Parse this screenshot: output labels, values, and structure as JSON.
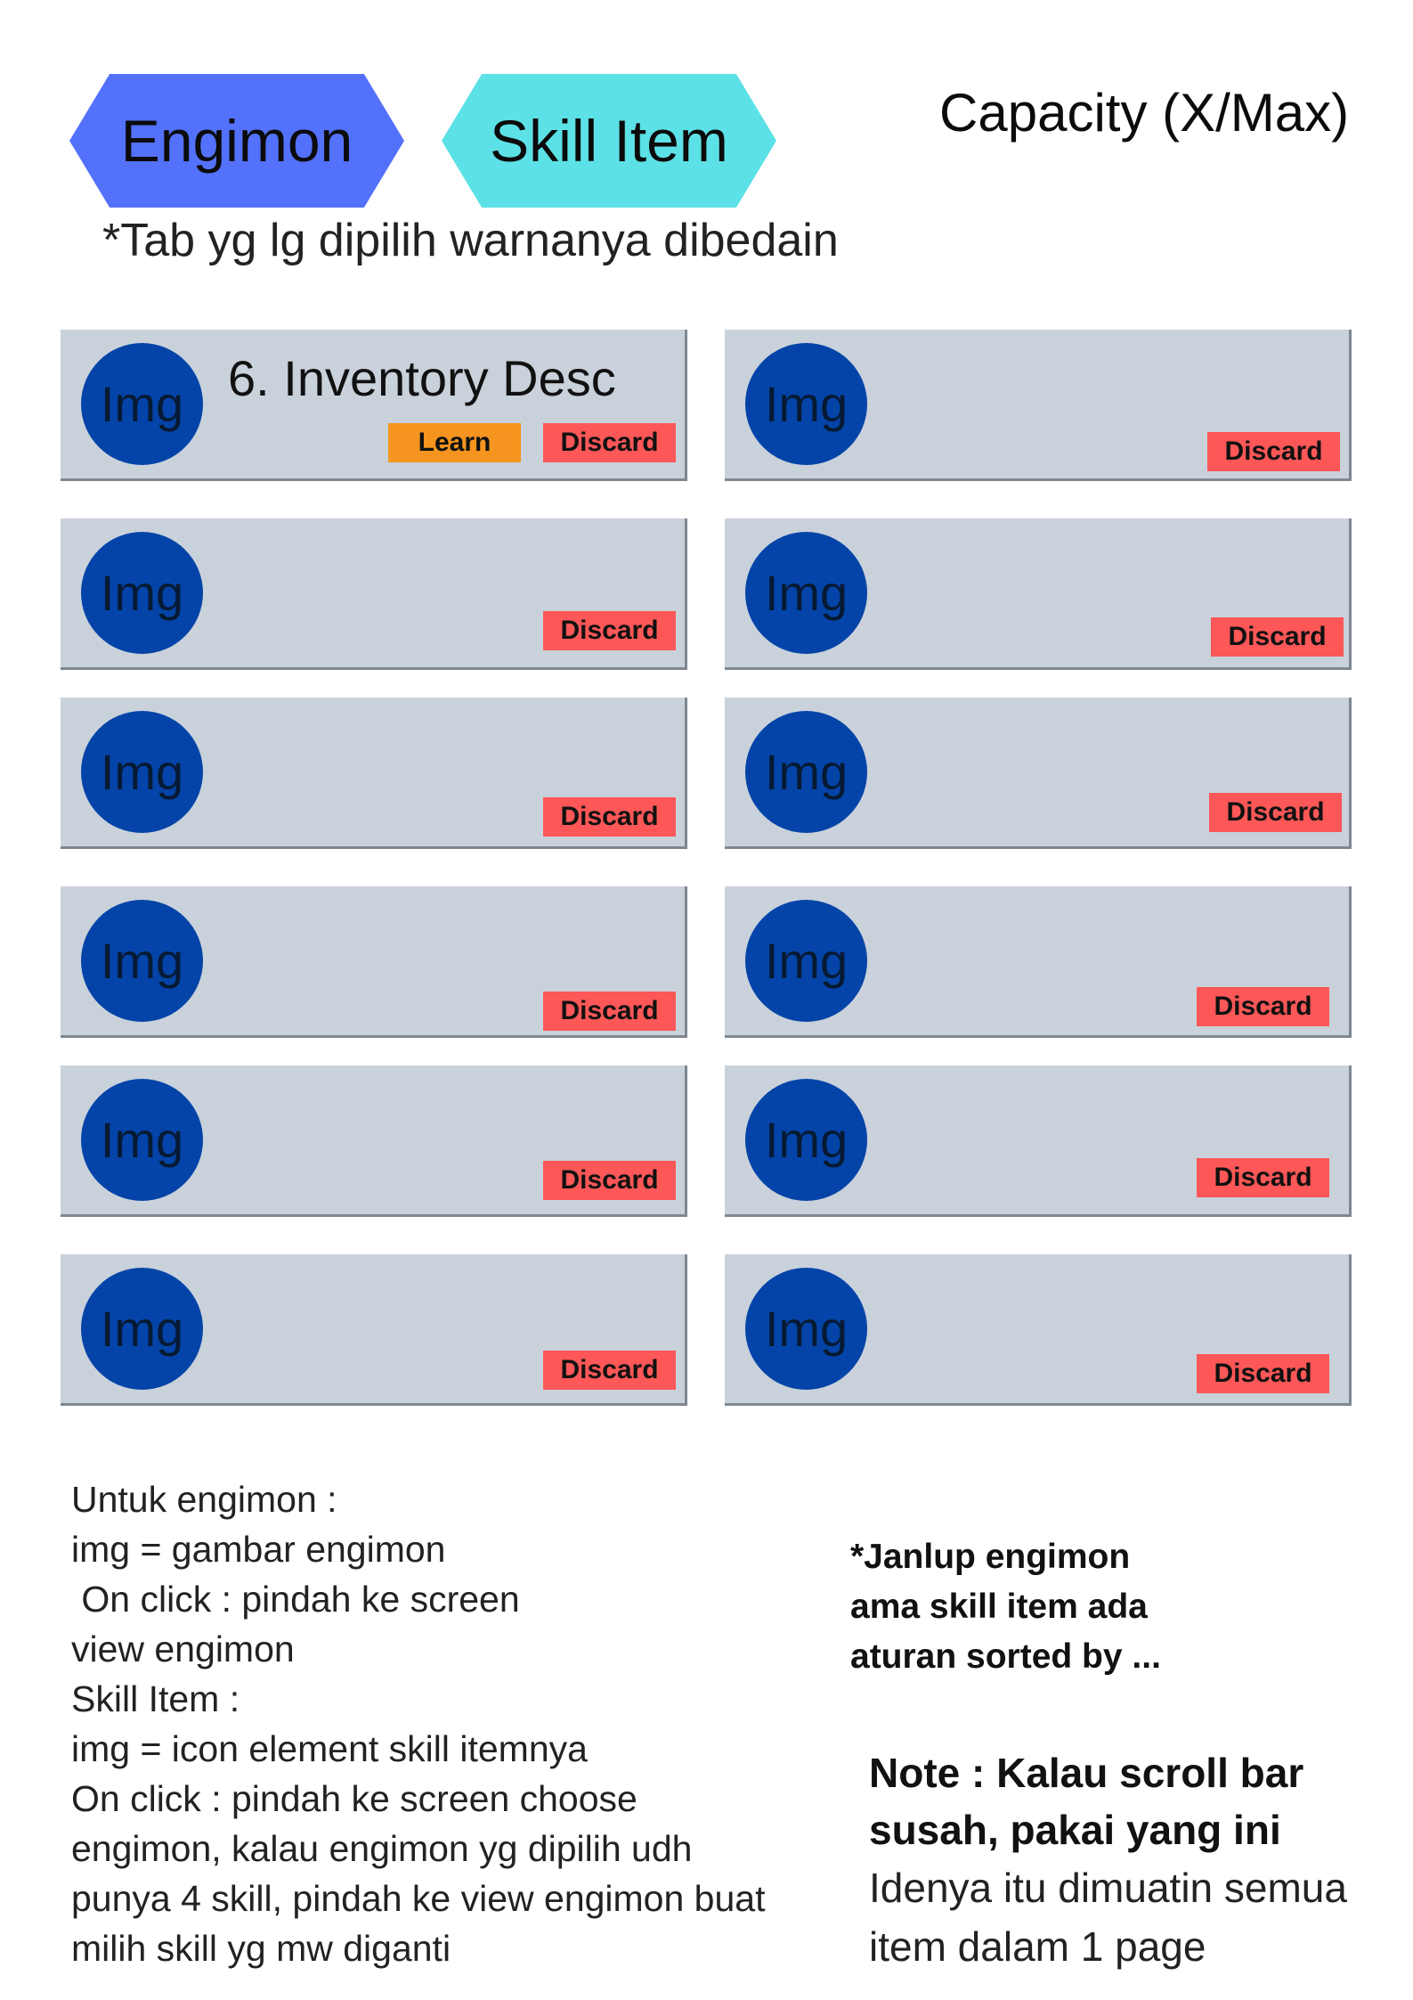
{
  "tabs": [
    {
      "label": "Engimon",
      "color": "#5371fb"
    },
    {
      "label": "Skill Item",
      "color": "#5ce1e6"
    }
  ],
  "capacity_label": "Capacity (X/Max)",
  "tab_note": "*Tab yg lg dipilih warnanya dibedain",
  "colors": {
    "card_bg": "#c9d1db",
    "img_circle": "#0444a8",
    "learn_button": "#f5951f",
    "discard_button": "#fd5757"
  },
  "items": [
    {
      "img": "Img",
      "desc": "6. Inventory Desc",
      "learn": "Learn",
      "discard": "Discard"
    },
    {
      "img": "Img",
      "discard": "Discard"
    },
    {
      "img": "Img",
      "discard": "Discard"
    },
    {
      "img": "Img",
      "discard": "Discard"
    },
    {
      "img": "Img",
      "discard": "Discard"
    },
    {
      "img": "Img",
      "discard": "Discard"
    },
    {
      "img": "Img",
      "discard": "Discard"
    },
    {
      "img": "Img",
      "discard": "Discard"
    },
    {
      "img": "Img",
      "discard": "Discard"
    },
    {
      "img": "Img",
      "discard": "Discard"
    },
    {
      "img": "Img",
      "discard": "Discard"
    },
    {
      "img": "Img",
      "discard": "Discard"
    }
  ],
  "notes_lines": [
    "Untuk engimon :",
    "img = gambar engimon",
    " On click : pindah ke screen",
    "view engimon",
    "Skill Item :",
    "img = icon element skill itemnya",
    "On click : pindah ke screen choose",
    "engimon, kalau engimon yg dipilih udh",
    "punya 4 skill, pindah ke view engimon buat",
    "milih skill yg mw diganti"
  ],
  "sort_note_lines": [
    "*Janlup engimon",
    "ama skill item ada",
    "aturan sorted by ..."
  ],
  "scroll_note": {
    "bold_lines": [
      "Note : Kalau scroll bar",
      "susah, pakai yang ini"
    ],
    "plain_lines": [
      "Idenya itu dimuatin semua",
      "item dalam 1 page"
    ]
  }
}
